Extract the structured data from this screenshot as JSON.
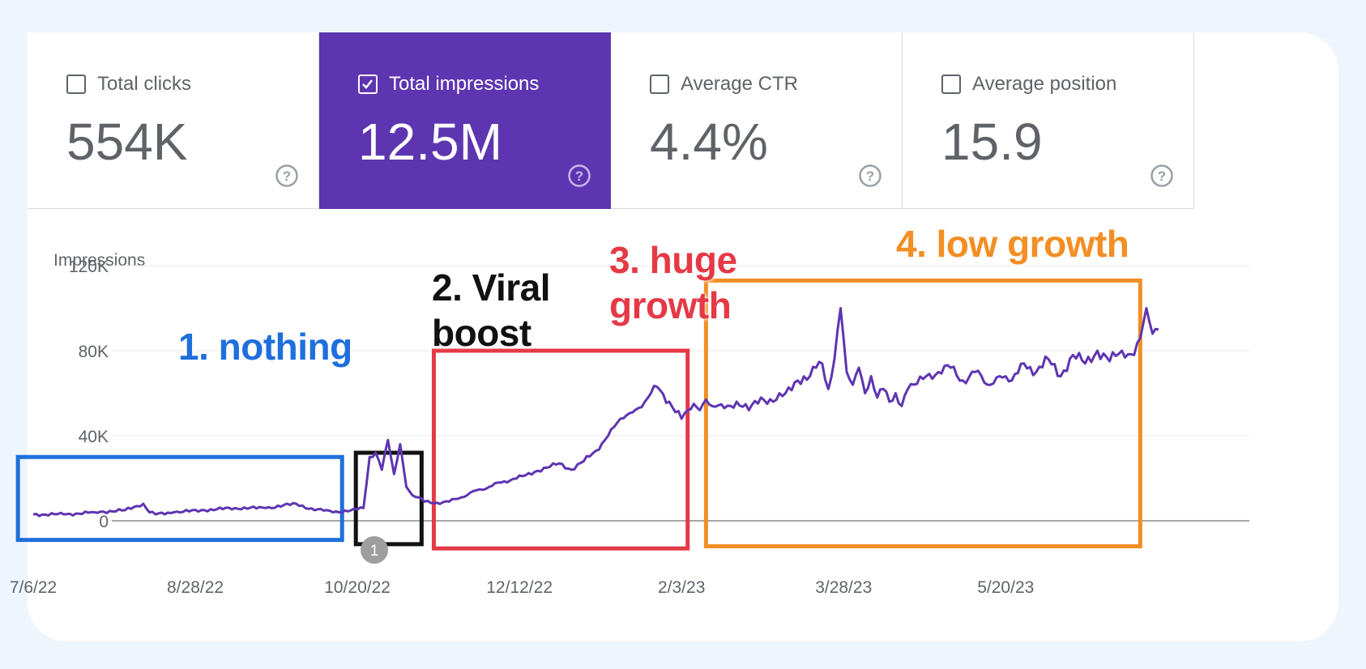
{
  "metrics": [
    {
      "label": "Total clicks",
      "value": "554K",
      "checked": false
    },
    {
      "label": "Total impressions",
      "value": "12.5M",
      "checked": true
    },
    {
      "label": "Average CTR",
      "value": "4.4%",
      "checked": false
    },
    {
      "label": "Average position",
      "value": "15.9",
      "checked": false
    }
  ],
  "colors": {
    "accent": "#5e35b1",
    "line": "#5e35b1",
    "grid": "#e8eaed",
    "axis_text": "#5f6368",
    "box_nothing": "#1e6fdc",
    "box_viral": "#111111",
    "box_huge": "#e53946",
    "box_low": "#f28e24"
  },
  "annotation_badge": "1",
  "annotations": [
    {
      "text": "1. nothing",
      "color": "#1e6fdc"
    },
    {
      "text": "2. Viral\nboost",
      "color": "#111111"
    },
    {
      "text": "3. huge\ngrowth",
      "color": "#e53946"
    },
    {
      "text": "4. low growth",
      "color": "#f28e24"
    }
  ],
  "chart_data": {
    "type": "line",
    "title": "Total impressions",
    "ylabel": "Impressions",
    "xlabel": "",
    "ylim": [
      0,
      120000
    ],
    "y_ticks": [
      0,
      40000,
      80000,
      120000
    ],
    "y_tick_labels": [
      "0",
      "40K",
      "80K",
      "120K"
    ],
    "x_tick_labels": [
      "7/6/22",
      "8/28/22",
      "10/20/22",
      "12/12/22",
      "2/3/23",
      "3/28/23",
      "5/20/23"
    ],
    "x_tick_days": [
      0,
      53,
      106,
      159,
      212,
      265,
      318
    ],
    "date_range": [
      "7/6/22",
      "7/8/23"
    ],
    "series": [
      {
        "name": "Impressions",
        "x_days": [
          0,
          10,
          20,
          30,
          36,
          38,
          40,
          46,
          56,
          66,
          76,
          86,
          92,
          96,
          100,
          104,
          108,
          110,
          112,
          114,
          116,
          118,
          120,
          122,
          124,
          126,
          128,
          132,
          136,
          140,
          144,
          148,
          152,
          156,
          160,
          164,
          168,
          172,
          176,
          180,
          184,
          188,
          192,
          196,
          200,
          204,
          208,
          212,
          214,
          216,
          218,
          220,
          222,
          226,
          230,
          234,
          238,
          242,
          246,
          250,
          254,
          256,
          258,
          260,
          262,
          264,
          266,
          268,
          270,
          272,
          274,
          276,
          278,
          280,
          282,
          284,
          286,
          288,
          292,
          296,
          300,
          304,
          308,
          312,
          316,
          320,
          324,
          328,
          332,
          336,
          340,
          344,
          348,
          352,
          356,
          360,
          362,
          364,
          366,
          368
        ],
        "values": [
          3000,
          3000,
          4000,
          5000,
          8000,
          4000,
          3000,
          4000,
          5000,
          6000,
          6000,
          8000,
          5000,
          5000,
          4000,
          5000,
          6000,
          30000,
          32000,
          24000,
          38000,
          22000,
          36000,
          16000,
          12000,
          11000,
          9000,
          8500,
          9000,
          11000,
          14000,
          15000,
          18000,
          19000,
          21000,
          23000,
          25000,
          27000,
          24000,
          28000,
          33000,
          40000,
          48000,
          51000,
          56000,
          63000,
          56000,
          48000,
          52000,
          55000,
          52000,
          57000,
          54000,
          53000,
          56000,
          52000,
          58000,
          56000,
          60000,
          66000,
          68000,
          72000,
          74000,
          62000,
          76000,
          100000,
          70000,
          64000,
          72000,
          60000,
          68000,
          58000,
          62000,
          56000,
          60000,
          54000,
          62000,
          64000,
          68000,
          70000,
          72000,
          66000,
          70000,
          64000,
          68000,
          66000,
          74000,
          70000,
          76000,
          68000,
          78000,
          74000,
          80000,
          75000,
          80000,
          78000,
          86000,
          100000,
          88000,
          90000
        ]
      }
    ]
  }
}
